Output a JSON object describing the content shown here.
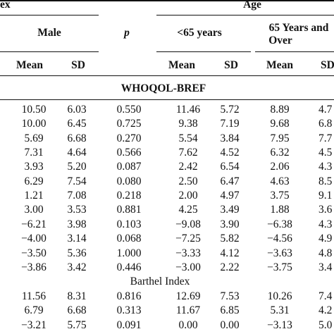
{
  "header": {
    "sex_group_label": "ex",
    "age_group_label": "Age",
    "male_label": "Male",
    "p_label": "p",
    "under65_label": "<65 years",
    "over65_line1": "65 Years and",
    "over65_line2": "Over",
    "mean_label": "Mean",
    "sd_label": "SD",
    "sd_label_cut": "SD"
  },
  "sections": {
    "whoqol": "WHOQOL-BREF",
    "barthel": "Barthel Index"
  },
  "whoqol_rows": [
    {
      "male_mean": "10.50",
      "male_sd": "6.03",
      "p": "0.550",
      "u_mean": "11.46",
      "u_sd": "5.72",
      "o_mean": "8.89",
      "o_sd": "4.7"
    },
    {
      "male_mean": "10.00",
      "male_sd": "6.45",
      "p": "0.725",
      "u_mean": "9.38",
      "u_sd": "7.19",
      "o_mean": "9.68",
      "o_sd": "6.8"
    },
    {
      "male_mean": "5.69",
      "male_sd": "6.68",
      "p": "0.270",
      "u_mean": "5.54",
      "u_sd": "3.84",
      "o_mean": "7.95",
      "o_sd": "7.7"
    },
    {
      "male_mean": "7.31",
      "male_sd": "4.64",
      "p": "0.566",
      "u_mean": "7.62",
      "u_sd": "4.52",
      "o_mean": "6.32",
      "o_sd": "4.5"
    },
    {
      "male_mean": "3.93",
      "male_sd": "5.20",
      "p": "0.087",
      "u_mean": "2.42",
      "u_sd": "6.54",
      "o_mean": "2.06",
      "o_sd": "4.3"
    },
    {
      "male_mean": "6.29",
      "male_sd": "7.54",
      "p": "0.080",
      "u_mean": "2.50",
      "u_sd": "6.47",
      "o_mean": "4.63",
      "o_sd": "8.5"
    },
    {
      "male_mean": "1.21",
      "male_sd": "7.08",
      "p": "0.218",
      "u_mean": "2.00",
      "u_sd": "4.97",
      "o_mean": "3.75",
      "o_sd": "9.1"
    },
    {
      "male_mean": "3.00",
      "male_sd": "3.53",
      "p": "0.881",
      "u_mean": "4.25",
      "u_sd": "3.49",
      "o_mean": "1.88",
      "o_sd": "3.6"
    },
    {
      "male_mean": "−6.21",
      "male_sd": "3.98",
      "p": "0.103",
      "u_mean": "−9.08",
      "u_sd": "3.90",
      "o_mean": "−6.38",
      "o_sd": "4.3"
    },
    {
      "male_mean": "−4.00",
      "male_sd": "3.14",
      "p": "0.068",
      "u_mean": "−7.25",
      "u_sd": "5.82",
      "o_mean": "−4.56",
      "o_sd": "4.9"
    },
    {
      "male_mean": "−3.50",
      "male_sd": "5.36",
      "p": "1.000",
      "u_mean": "−3.33",
      "u_sd": "4.12",
      "o_mean": "−3.63",
      "o_sd": "4.8"
    },
    {
      "male_mean": "−3.86",
      "male_sd": "3.42",
      "p": "0.446",
      "u_mean": "−3.00",
      "u_sd": "2.22",
      "o_mean": "−3.75",
      "o_sd": "3.4"
    }
  ],
  "barthel_rows": [
    {
      "male_mean": "11.56",
      "male_sd": "8.31",
      "p": "0.816",
      "u_mean": "12.69",
      "u_sd": "7.53",
      "o_mean": "10.26",
      "o_sd": "7.4"
    },
    {
      "male_mean": "6.79",
      "male_sd": "6.68",
      "p": "0.313",
      "u_mean": "11.67",
      "u_sd": "6.85",
      "o_mean": "5.31",
      "o_sd": "4.2"
    },
    {
      "male_mean": "−3.21",
      "male_sd": "5.75",
      "p": "0.091",
      "u_mean": "0.00",
      "u_sd": "0.00",
      "o_mean": "−3.13",
      "o_sd": "5.0"
    }
  ]
}
